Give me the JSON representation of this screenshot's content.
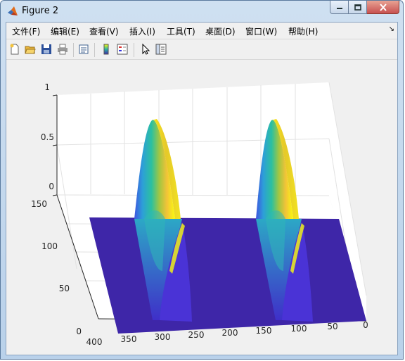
{
  "window": {
    "title": "Figure 2"
  },
  "menu": [
    "文件(F)",
    "编辑(E)",
    "查看(V)",
    "插入(I)",
    "工具(T)",
    "桌面(D)",
    "窗口(W)",
    "帮助(H)"
  ],
  "toolbar": {
    "icons": [
      "new-figure-icon",
      "open-file-icon",
      "save-icon",
      "print-icon",
      "link-plot-icon",
      "colorbar-icon",
      "legend-icon",
      "pointer-icon",
      "property-inspector-icon"
    ]
  },
  "plot": {
    "type": "surface",
    "zticks": [
      "0",
      "0.5",
      "1"
    ],
    "yticks": [
      "0",
      "50",
      "100",
      "150"
    ],
    "xticks": [
      "400",
      "350",
      "300",
      "250",
      "200",
      "150",
      "100",
      "50",
      "0"
    ],
    "zlim": [
      0,
      1
    ],
    "ylim": [
      0,
      150
    ],
    "xlim": [
      0,
      400
    ],
    "colormap": "parula",
    "floor_color": "#3e26a8",
    "peak_color": "#f9fb0e",
    "grid": true
  }
}
